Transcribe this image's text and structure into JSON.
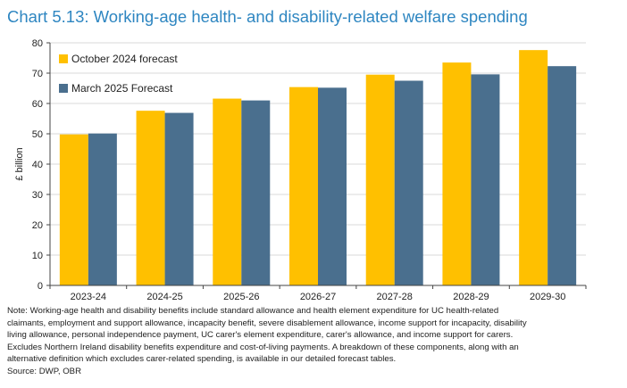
{
  "title": "Chart 5.13: Working-age health- and disability-related welfare spending",
  "chart_data": {
    "type": "bar",
    "categories": [
      "2023-24",
      "2024-25",
      "2025-26",
      "2026-27",
      "2027-28",
      "2028-29",
      "2029-30"
    ],
    "series": [
      {
        "name": "October 2024 forecast",
        "values": [
          49.8,
          57.6,
          61.6,
          65.4,
          69.5,
          73.5,
          77.6
        ]
      },
      {
        "name": "March 2025 Forecast",
        "values": [
          50.1,
          56.9,
          61.0,
          65.2,
          67.5,
          69.6,
          72.3
        ]
      }
    ],
    "ylabel": "£ billion",
    "xlabel": "",
    "ylim": [
      0,
      80
    ],
    "yticks": [
      0,
      10,
      20,
      30,
      40,
      50,
      60,
      70,
      80
    ],
    "grid": true,
    "legend_position": "top-left",
    "colors": [
      "#ffc000",
      "#4a6f8e"
    ]
  },
  "notes": {
    "lines": [
      "Note: Working-age health and disability benefits include standard allowance and health element expenditure for UC health-related",
      "claimants, employment and support allowance, incapacity benefit, severe disablement allowance, income support for incapacity, disability",
      "living allowance, personal independence payment, UC carer's element expenditure, carer's allowance, and income support for carers.",
      "Excludes Northern Ireland disability benefits expenditure and cost-of-living payments. A breakdown of these components, along with an",
      "alternative definition which excludes carer-related spending, is available in our detailed forecast tables."
    ],
    "source": "Source: DWP, OBR"
  }
}
